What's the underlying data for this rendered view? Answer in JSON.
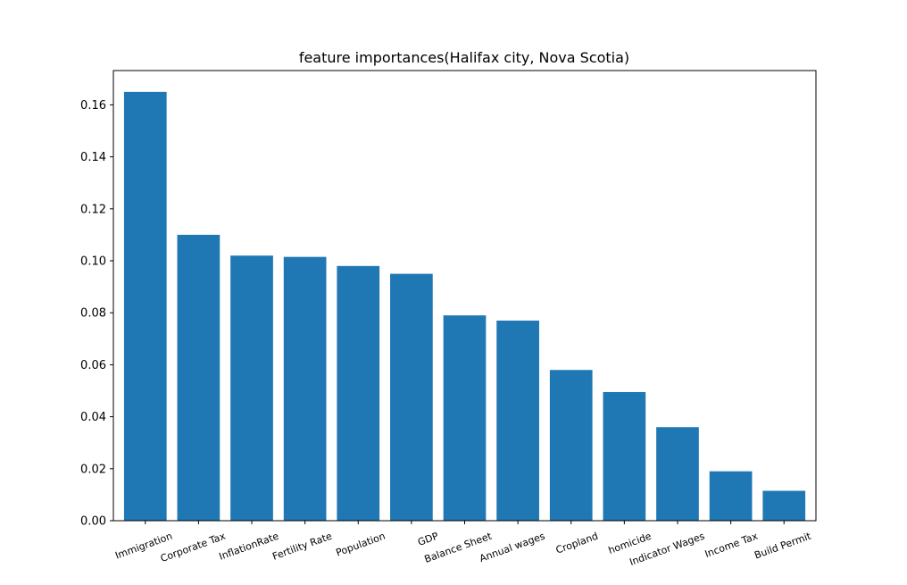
{
  "chart_data": {
    "type": "bar",
    "title": "feature importances(Halifax city, Nova Scotia)",
    "xlabel": "",
    "ylabel": "",
    "categories": [
      "Immigration",
      "Corporate Tax",
      "InflationRate",
      "Fertility Rate",
      "Population",
      "GDP",
      "Balance Sheet",
      "Annual wages",
      "Cropland",
      "homicide",
      "Indicator Wages",
      "Income Tax",
      "Build Permit"
    ],
    "values": [
      0.165,
      0.11,
      0.102,
      0.1015,
      0.098,
      0.095,
      0.079,
      0.077,
      0.058,
      0.0495,
      0.036,
      0.019,
      0.0115
    ],
    "ylim": [
      0,
      0.1732
    ],
    "yticks": [
      "0.00",
      "0.02",
      "0.04",
      "0.06",
      "0.08",
      "0.10",
      "0.12",
      "0.14",
      "0.16"
    ],
    "x_tick_rotation": "20deg counter-clockwise",
    "grid": false,
    "legend": "none",
    "bar_color": "#1f77b4"
  }
}
